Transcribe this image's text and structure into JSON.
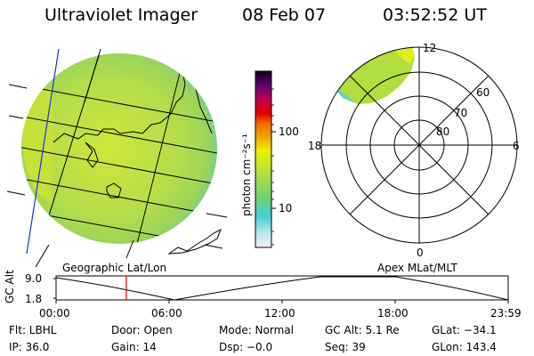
{
  "header": {
    "title": "Ultraviolet Imager",
    "date": "08 Feb 07",
    "time": "03:52:52 UT"
  },
  "colorbar": {
    "ticks": [
      "100",
      "10"
    ],
    "unit_label": "photon cm⁻²s⁻¹"
  },
  "panels": {
    "left_label": "Geographic Lat/Lon",
    "right_label": "Apex MLat/MLT"
  },
  "polar": {
    "mlt_labels": {
      "top": "12",
      "left": "18",
      "right": "6",
      "bottom": "0"
    },
    "lat_labels": [
      "60",
      "70",
      "80"
    ]
  },
  "timeline": {
    "axis_label": "GC Alt",
    "y_ticks": [
      "9.0",
      "1.8"
    ],
    "x_ticks": [
      "00:00",
      "06:00",
      "12:00",
      "18:00",
      "23:59"
    ],
    "marker_color": "#e00000"
  },
  "info": {
    "filter": "Flt: LBHL",
    "door": "Door: Open",
    "mode": "Mode: Normal",
    "gc_alt": "GC Alt: 5.1 Re",
    "glat": "GLat: −34.1",
    "ip": "IP: 36.0",
    "gain": "Gain: 14",
    "dsp": "Dsp:   −0.0",
    "seq": "Seq: 39",
    "glon": "GLon: 143.4"
  }
}
